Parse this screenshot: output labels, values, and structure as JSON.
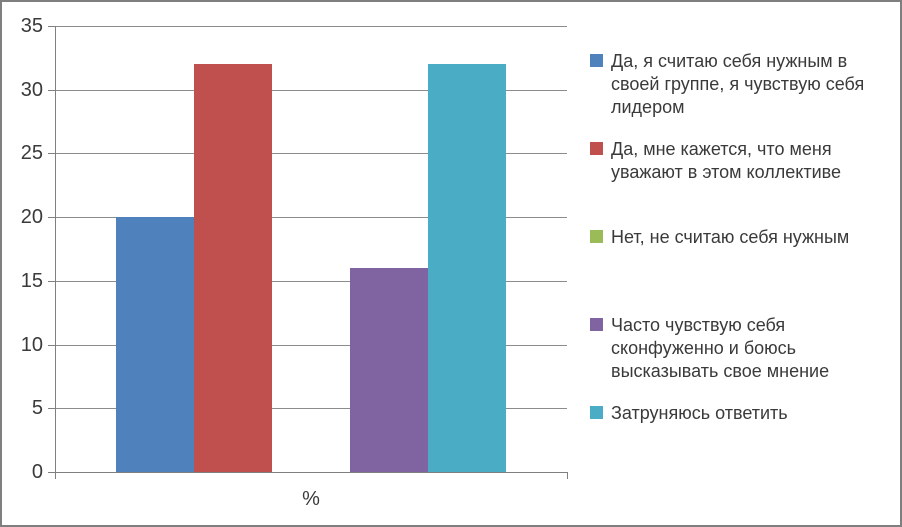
{
  "chart_data": {
    "type": "bar",
    "title": "",
    "xlabel": "%",
    "ylabel": "",
    "ylim": [
      0,
      35
    ],
    "yticks": [
      0,
      5,
      10,
      15,
      20,
      25,
      30,
      35
    ],
    "categories": [
      "%"
    ],
    "grid": true,
    "legend_position": "right",
    "series": [
      {
        "name": "Да, я считаю себя нужным в своей группе, я чувствую себя лидером",
        "values": [
          20
        ],
        "color": "#4F81BD"
      },
      {
        "name": "Да, мне кажется, что меня уважают в этом коллективе",
        "values": [
          32
        ],
        "color": "#C0504D"
      },
      {
        "name": "Нет, не считаю себя нужным",
        "values": [
          0
        ],
        "color": "#9BBB59"
      },
      {
        "name": "Часто чувствую себя сконфуженно и боюсь высказывать свое мнение",
        "values": [
          16
        ],
        "color": "#8064A2"
      },
      {
        "name": "Затруняюсь ответить",
        "values": [
          32
        ],
        "color": "#4BACC6"
      }
    ]
  },
  "palette": {
    "gridline": "#8C8C8C",
    "axis": "#808080",
    "text": "#3A3A3A",
    "border": "#7F7F7F",
    "background": "#FFFFFF"
  }
}
